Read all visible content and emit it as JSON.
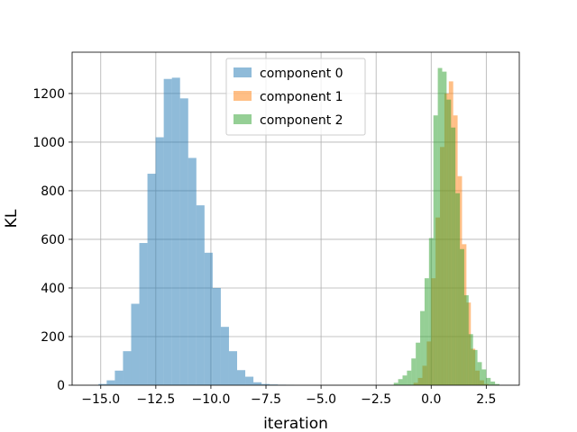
{
  "chart_data": {
    "type": "bar",
    "title": "",
    "xlabel": "iteration",
    "ylabel": "KL",
    "xlim": [
      -16.3,
      4.0
    ],
    "ylim": [
      0,
      1370
    ],
    "grid": true,
    "legend_position": "upper-center",
    "x_ticks": [
      {
        "value": -15.0,
        "label": "−15.0"
      },
      {
        "value": -12.5,
        "label": "−12.5"
      },
      {
        "value": -10.0,
        "label": "−10.0"
      },
      {
        "value": -7.5,
        "label": "−7.5"
      },
      {
        "value": -5.0,
        "label": "−5.0"
      },
      {
        "value": -2.5,
        "label": "−2.5"
      },
      {
        "value": 0.0,
        "label": "0.0"
      },
      {
        "value": 2.5,
        "label": "2.5"
      }
    ],
    "y_ticks": [
      {
        "value": 0,
        "label": "0"
      },
      {
        "value": 200,
        "label": "200"
      },
      {
        "value": 400,
        "label": "400"
      },
      {
        "value": 600,
        "label": "600"
      },
      {
        "value": 800,
        "label": "800"
      },
      {
        "value": 1000,
        "label": "1000"
      },
      {
        "value": 1200,
        "label": "1200"
      }
    ],
    "series": [
      {
        "name": "component 0",
        "color": "#1f77b4",
        "alpha": 0.5,
        "bin_width": 0.37,
        "bins": [
          {
            "x0": -15.1,
            "count": 5
          },
          {
            "x0": -14.73,
            "count": 20
          },
          {
            "x0": -14.36,
            "count": 60
          },
          {
            "x0": -13.99,
            "count": 140
          },
          {
            "x0": -13.62,
            "count": 335
          },
          {
            "x0": -13.25,
            "count": 585
          },
          {
            "x0": -12.88,
            "count": 870
          },
          {
            "x0": -12.51,
            "count": 1020
          },
          {
            "x0": -12.14,
            "count": 1260
          },
          {
            "x0": -11.77,
            "count": 1265
          },
          {
            "x0": -11.4,
            "count": 1180
          },
          {
            "x0": -11.03,
            "count": 935
          },
          {
            "x0": -10.66,
            "count": 740
          },
          {
            "x0": -10.29,
            "count": 545
          },
          {
            "x0": -9.92,
            "count": 400
          },
          {
            "x0": -9.55,
            "count": 240
          },
          {
            "x0": -9.18,
            "count": 140
          },
          {
            "x0": -8.81,
            "count": 62
          },
          {
            "x0": -8.44,
            "count": 35
          },
          {
            "x0": -8.07,
            "count": 12
          },
          {
            "x0": -7.7,
            "count": 5
          },
          {
            "x0": -7.33,
            "count": 3
          },
          {
            "x0": -6.96,
            "count": 2
          },
          {
            "x0": -6.59,
            "count": 1
          }
        ]
      },
      {
        "name": "component 1",
        "color": "#ff7f0e",
        "alpha": 0.5,
        "bin_width": 0.2,
        "bins": [
          {
            "x0": -0.8,
            "count": 10
          },
          {
            "x0": -0.6,
            "count": 30
          },
          {
            "x0": -0.4,
            "count": 80
          },
          {
            "x0": -0.2,
            "count": 180
          },
          {
            "x0": 0.0,
            "count": 440
          },
          {
            "x0": 0.2,
            "count": 690
          },
          {
            "x0": 0.4,
            "count": 980
          },
          {
            "x0": 0.6,
            "count": 1200
          },
          {
            "x0": 0.8,
            "count": 1250
          },
          {
            "x0": 1.0,
            "count": 1110
          },
          {
            "x0": 1.2,
            "count": 860
          },
          {
            "x0": 1.4,
            "count": 580
          },
          {
            "x0": 1.6,
            "count": 340
          },
          {
            "x0": 1.8,
            "count": 150
          },
          {
            "x0": 2.0,
            "count": 60
          },
          {
            "x0": 2.2,
            "count": 20
          },
          {
            "x0": 2.4,
            "count": 5
          }
        ]
      },
      {
        "name": "component 2",
        "color": "#2ca02c",
        "alpha": 0.5,
        "bin_width": 0.2,
        "bins": [
          {
            "x0": -1.7,
            "count": 10
          },
          {
            "x0": -1.5,
            "count": 25
          },
          {
            "x0": -1.3,
            "count": 40
          },
          {
            "x0": -1.1,
            "count": 60
          },
          {
            "x0": -0.9,
            "count": 110
          },
          {
            "x0": -0.7,
            "count": 175
          },
          {
            "x0": -0.5,
            "count": 305
          },
          {
            "x0": -0.3,
            "count": 440
          },
          {
            "x0": -0.1,
            "count": 605
          },
          {
            "x0": 0.1,
            "count": 1110
          },
          {
            "x0": 0.3,
            "count": 1305
          },
          {
            "x0": 0.5,
            "count": 1290
          },
          {
            "x0": 0.7,
            "count": 1175
          },
          {
            "x0": 0.9,
            "count": 1060
          },
          {
            "x0": 1.1,
            "count": 790
          },
          {
            "x0": 1.3,
            "count": 560
          },
          {
            "x0": 1.5,
            "count": 370
          },
          {
            "x0": 1.7,
            "count": 210
          },
          {
            "x0": 1.9,
            "count": 145
          },
          {
            "x0": 2.1,
            "count": 95
          },
          {
            "x0": 2.3,
            "count": 65
          },
          {
            "x0": 2.5,
            "count": 30
          },
          {
            "x0": 2.7,
            "count": 15
          },
          {
            "x0": 2.9,
            "count": 5
          }
        ]
      }
    ]
  }
}
